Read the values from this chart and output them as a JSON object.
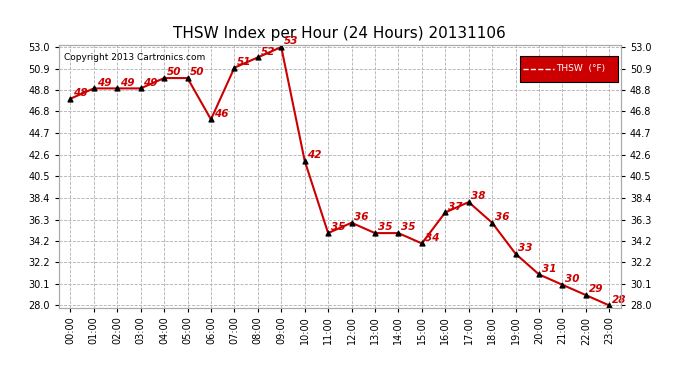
{
  "title": "THSW Index per Hour (24 Hours) 20131106",
  "copyright": "Copyright 2013 Cartronics.com",
  "legend_label": "THSW  (°F)",
  "x_labels": [
    "00:00",
    "01:00",
    "02:00",
    "03:00",
    "04:00",
    "05:00",
    "06:00",
    "07:00",
    "08:00",
    "09:00",
    "10:00",
    "11:00",
    "12:00",
    "13:00",
    "14:00",
    "15:00",
    "16:00",
    "17:00",
    "18:00",
    "19:00",
    "20:00",
    "21:00",
    "22:00",
    "23:00"
  ],
  "hours": [
    0,
    1,
    2,
    3,
    4,
    5,
    6,
    7,
    8,
    9,
    10,
    11,
    12,
    13,
    14,
    15,
    16,
    17,
    18,
    19,
    20,
    21,
    22,
    23
  ],
  "values": [
    48,
    49,
    49,
    49,
    50,
    50,
    46,
    51,
    52,
    53,
    42,
    35,
    36,
    35,
    35,
    34,
    37,
    38,
    36,
    33,
    31,
    30,
    29,
    28
  ],
  "ylim_min": 27.8,
  "ylim_max": 53.2,
  "ytick_vals": [
    28.0,
    30.1,
    32.2,
    34.2,
    36.3,
    38.4,
    40.5,
    42.6,
    44.7,
    46.8,
    48.8,
    50.9,
    53.0
  ],
  "ytick_labels": [
    "28.0",
    "30.1",
    "32.2",
    "34.2",
    "36.3",
    "38.4",
    "40.5",
    "42.6",
    "44.7",
    "46.8",
    "48.8",
    "50.9",
    "53.0"
  ],
  "line_color": "#cc0000",
  "marker_color": "#000000",
  "label_color": "#cc0000",
  "background_color": "#ffffff",
  "grid_color": "#b0b0b0",
  "title_fontsize": 11,
  "label_fontsize": 7.5,
  "tick_fontsize": 7,
  "copyright_fontsize": 6.5,
  "legend_bg": "#cc0000",
  "legend_fg": "#ffffff"
}
